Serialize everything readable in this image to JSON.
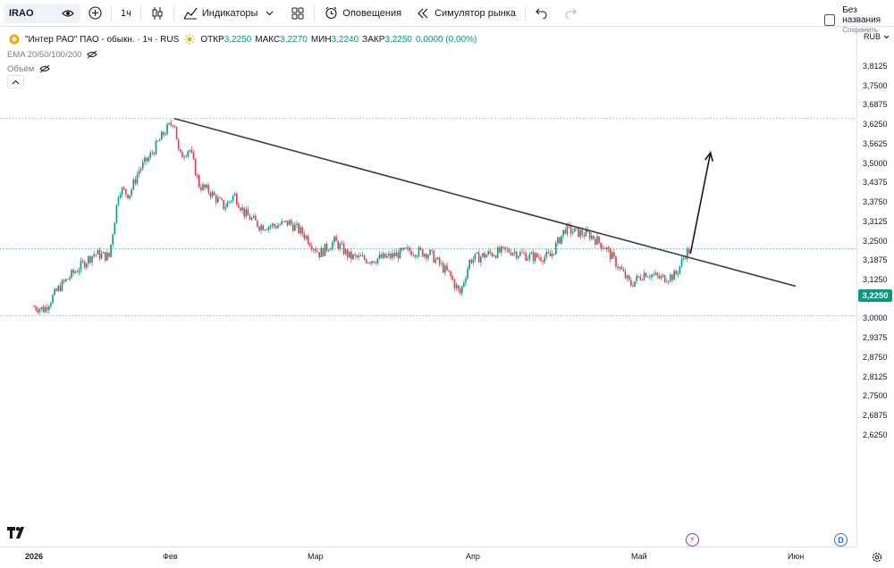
{
  "toolbar": {
    "symbol": "IRAO",
    "interval": "1ч",
    "indicators_label": "Индикаторы",
    "alerts_label": "Оповещения",
    "simulator_label": "Симулятор рынка",
    "layout_name": "Без названия",
    "layout_sub": "Сохранить"
  },
  "legend": {
    "title": "\"Интер РАО\" ПАО - обыкн. · 1ч · RUS",
    "open_label": "ОТКР",
    "open": "3,2250",
    "high_label": "МАКС",
    "high": "3,2270",
    "low_label": "МИН",
    "low": "3,2240",
    "close_label": "ЗАКР",
    "close": "3,2250",
    "change": "0,0000 (0,00%)",
    "ema": "EMA 20/50/100/200",
    "volume": "Объём"
  },
  "currency": "RUB",
  "current_price_label": "3,2250",
  "price_axis": [
    "3,8125",
    "3,7500",
    "3,6875",
    "3,6250",
    "3,5625",
    "3,5000",
    "3,4375",
    "3,3750",
    "3,3125",
    "3,2500",
    "3,1875",
    "3,1250",
    "3,0625",
    "3,0000",
    "2,9375",
    "2,8750",
    "2,8125",
    "2,7500",
    "2,6875",
    "2,6250"
  ],
  "time_axis": [
    "2026",
    "Фев",
    "Мар",
    "Апр",
    "Май",
    "Июн"
  ],
  "colors": {
    "up": "#089981",
    "down": "#f23645",
    "trendline": "#3c3c3c",
    "current_line": "#089981"
  },
  "chart_data": {
    "type": "candlestick",
    "symbol": "IRAO",
    "interval": "1ч",
    "ylim": [
      2.59,
      3.85
    ],
    "x_range": [
      "2026-01-01",
      "2026-06-02"
    ],
    "price_path": [
      [
        "2026-01-01",
        3.04
      ],
      [
        "2026-01-03",
        3.03
      ],
      [
        "2026-01-06",
        3.1
      ],
      [
        "2026-01-09",
        3.15
      ],
      [
        "2026-01-13",
        3.21
      ],
      [
        "2026-01-16",
        3.2
      ],
      [
        "2026-01-18",
        3.42
      ],
      [
        "2026-01-20",
        3.4
      ],
      [
        "2026-01-22",
        3.48
      ],
      [
        "2026-01-24",
        3.52
      ],
      [
        "2026-01-27",
        3.6
      ],
      [
        "2026-01-29",
        3.64
      ],
      [
        "2026-01-30",
        3.52
      ],
      [
        "2026-02-01",
        3.55
      ],
      [
        "2026-02-03",
        3.43
      ],
      [
        "2026-02-05",
        3.41
      ],
      [
        "2026-02-08",
        3.36
      ],
      [
        "2026-02-10",
        3.4
      ],
      [
        "2026-02-12",
        3.34
      ],
      [
        "2026-02-15",
        3.3
      ],
      [
        "2026-02-18",
        3.3
      ],
      [
        "2026-02-21",
        3.31
      ],
      [
        "2026-02-24",
        3.27
      ],
      [
        "2026-02-27",
        3.21
      ],
      [
        "2026-03-02",
        3.25
      ],
      [
        "2026-03-05",
        3.2
      ],
      [
        "2026-03-09",
        3.19
      ],
      [
        "2026-03-13",
        3.2
      ],
      [
        "2026-03-17",
        3.22
      ],
      [
        "2026-03-21",
        3.21
      ],
      [
        "2026-03-25",
        3.14
      ],
      [
        "2026-03-27",
        3.08
      ],
      [
        "2026-03-29",
        3.19
      ],
      [
        "2026-04-02",
        3.21
      ],
      [
        "2026-04-06",
        3.22
      ],
      [
        "2026-04-10",
        3.2
      ],
      [
        "2026-04-14",
        3.2
      ],
      [
        "2026-04-17",
        3.29
      ],
      [
        "2026-04-19",
        3.28
      ],
      [
        "2026-04-22",
        3.27
      ],
      [
        "2026-04-25",
        3.23
      ],
      [
        "2026-04-28",
        3.16
      ],
      [
        "2026-04-30",
        3.11
      ],
      [
        "2026-05-03",
        3.15
      ],
      [
        "2026-05-06",
        3.13
      ],
      [
        "2026-05-09",
        3.14
      ],
      [
        "2026-05-11",
        3.21
      ],
      [
        "2026-05-12",
        3.225
      ]
    ],
    "horizontal_lines": [
      3.645,
      3.225,
      3.01
    ],
    "trendline": {
      "from": [
        "2026-01-29",
        3.645
      ],
      "to": [
        "2026-06-02",
        3.105
      ]
    },
    "arrow": {
      "from": [
        "2026-05-12",
        3.21
      ],
      "to": [
        "2026-05-16",
        3.535
      ]
    }
  }
}
